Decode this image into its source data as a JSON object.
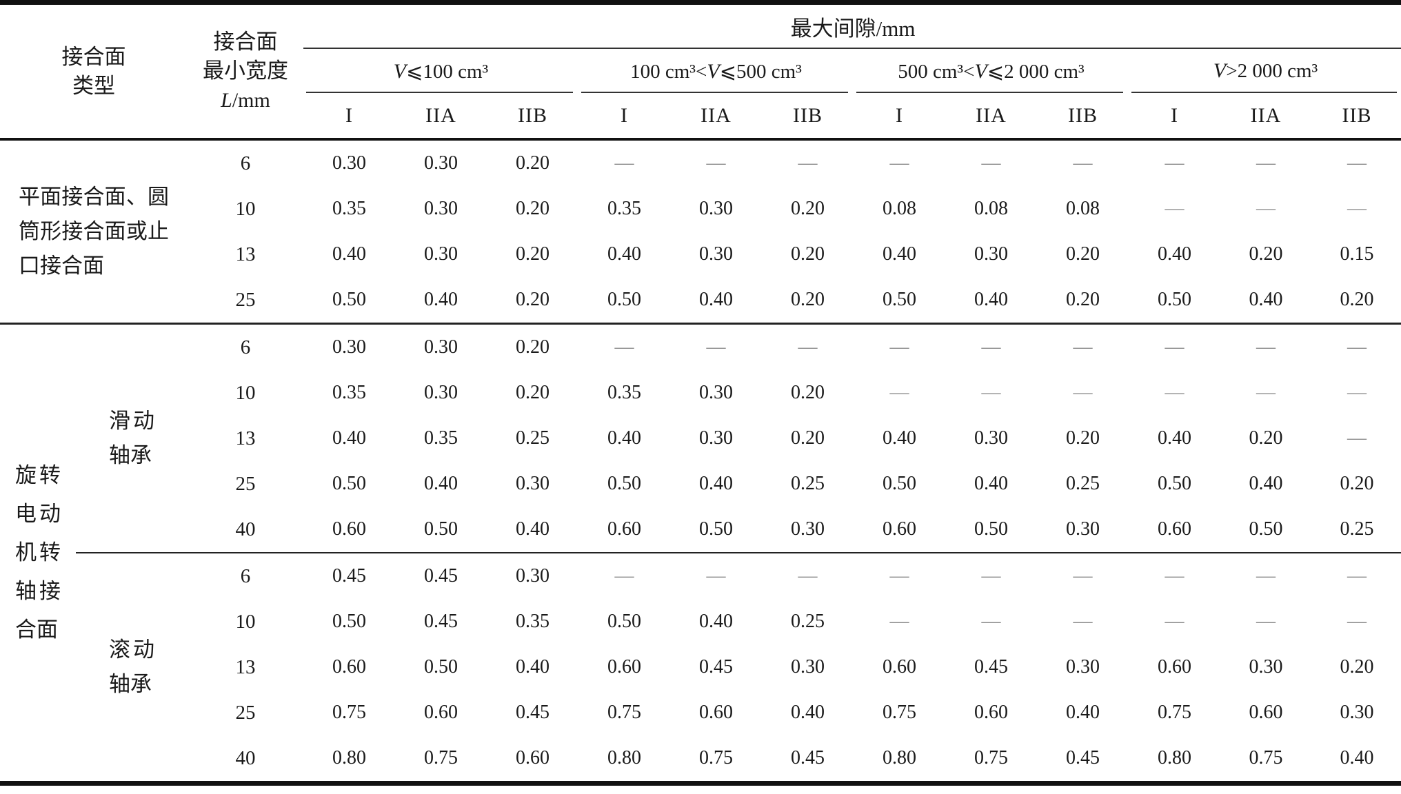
{
  "header": {
    "type_col": {
      "line1": "接合面",
      "line2": "类型"
    },
    "width_col": {
      "line1": "接合面",
      "line2": "最小宽度",
      "symbol": "L",
      "unit": "/mm"
    },
    "max_gap_label": "最大间隙/mm",
    "volume_groups": [
      {
        "pre": "",
        "var": "V",
        "post": "⩽100 cm³"
      },
      {
        "pre": "100 cm³<",
        "var": "V",
        "post": "⩽500 cm³"
      },
      {
        "pre": "500 cm³<",
        "var": "V",
        "post": "⩽2 000 cm³"
      },
      {
        "pre": "",
        "var": "V",
        "post": ">2 000 cm³"
      }
    ],
    "grade_cols": [
      "I",
      "IIA",
      "IIB"
    ]
  },
  "sections": [
    {
      "type_label": "平面接合面、圆筒形接合面或止口接合面",
      "subsections": [
        {
          "label": "",
          "rows": [
            {
              "L": "6",
              "values": [
                "0.30",
                "0.30",
                "0.20",
                "—",
                "—",
                "—",
                "—",
                "—",
                "—",
                "—",
                "—",
                "—"
              ]
            },
            {
              "L": "10",
              "values": [
                "0.35",
                "0.30",
                "0.20",
                "0.35",
                "0.30",
                "0.20",
                "0.08",
                "0.08",
                "0.08",
                "—",
                "—",
                "—"
              ]
            },
            {
              "L": "13",
              "values": [
                "0.40",
                "0.30",
                "0.20",
                "0.40",
                "0.30",
                "0.20",
                "0.40",
                "0.30",
                "0.20",
                "0.40",
                "0.20",
                "0.15"
              ]
            },
            {
              "L": "25",
              "values": [
                "0.50",
                "0.40",
                "0.20",
                "0.50",
                "0.40",
                "0.20",
                "0.50",
                "0.40",
                "0.20",
                "0.50",
                "0.40",
                "0.20"
              ]
            }
          ]
        }
      ]
    },
    {
      "type_label": "旋转电动机转轴接合面",
      "subsections": [
        {
          "label": "滑动轴承",
          "rows": [
            {
              "L": "6",
              "values": [
                "0.30",
                "0.30",
                "0.20",
                "—",
                "—",
                "—",
                "—",
                "—",
                "—",
                "—",
                "—",
                "—"
              ]
            },
            {
              "L": "10",
              "values": [
                "0.35",
                "0.30",
                "0.20",
                "0.35",
                "0.30",
                "0.20",
                "—",
                "—",
                "—",
                "—",
                "—",
                "—"
              ]
            },
            {
              "L": "13",
              "values": [
                "0.40",
                "0.35",
                "0.25",
                "0.40",
                "0.30",
                "0.20",
                "0.40",
                "0.30",
                "0.20",
                "0.40",
                "0.20",
                "—"
              ]
            },
            {
              "L": "25",
              "values": [
                "0.50",
                "0.40",
                "0.30",
                "0.50",
                "0.40",
                "0.25",
                "0.50",
                "0.40",
                "0.25",
                "0.50",
                "0.40",
                "0.20"
              ]
            },
            {
              "L": "40",
              "values": [
                "0.60",
                "0.50",
                "0.40",
                "0.60",
                "0.50",
                "0.30",
                "0.60",
                "0.50",
                "0.30",
                "0.60",
                "0.50",
                "0.25"
              ]
            }
          ]
        },
        {
          "label": "滚动轴承",
          "rows": [
            {
              "L": "6",
              "values": [
                "0.45",
                "0.45",
                "0.30",
                "—",
                "—",
                "—",
                "—",
                "—",
                "—",
                "—",
                "—",
                "—"
              ]
            },
            {
              "L": "10",
              "values": [
                "0.50",
                "0.45",
                "0.35",
                "0.50",
                "0.40",
                "0.25",
                "—",
                "—",
                "—",
                "—",
                "—",
                "—"
              ]
            },
            {
              "L": "13",
              "values": [
                "0.60",
                "0.50",
                "0.40",
                "0.60",
                "0.45",
                "0.30",
                "0.60",
                "0.45",
                "0.30",
                "0.60",
                "0.30",
                "0.20"
              ]
            },
            {
              "L": "25",
              "values": [
                "0.75",
                "0.60",
                "0.45",
                "0.75",
                "0.60",
                "0.40",
                "0.75",
                "0.60",
                "0.40",
                "0.75",
                "0.60",
                "0.30"
              ]
            },
            {
              "L": "40",
              "values": [
                "0.80",
                "0.75",
                "0.60",
                "0.80",
                "0.75",
                "0.45",
                "0.80",
                "0.75",
                "0.45",
                "0.80",
                "0.75",
                "0.40"
              ]
            }
          ]
        }
      ]
    }
  ],
  "colors": {
    "text": "#1a1a1a",
    "rule": "#222222",
    "dash": "#8a8a8a",
    "background": "#ffffff"
  }
}
